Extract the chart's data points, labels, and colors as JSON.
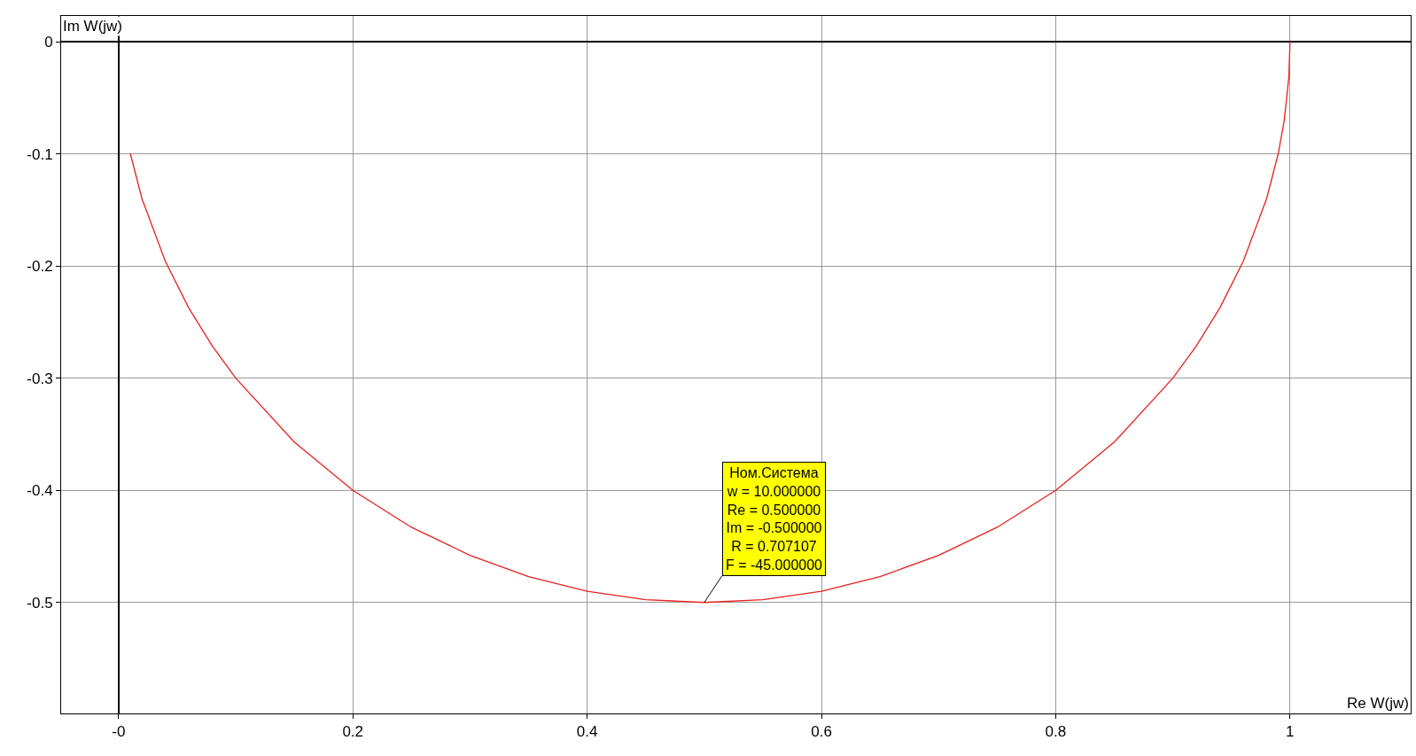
{
  "chart_data": {
    "type": "line",
    "xlabel": "Re W(jw)",
    "ylabel": "Im W(jw)",
    "xlim": [
      -0.049,
      1.103
    ],
    "ylim": [
      -0.599,
      0.023
    ],
    "xticks": [
      {
        "value": 0,
        "label": "-0"
      },
      0.2,
      0.4,
      0.6,
      0.8,
      1
    ],
    "yticks": [
      0,
      -0.1,
      -0.2,
      -0.3,
      -0.4,
      -0.5
    ],
    "grid": true,
    "marker": "none",
    "line_style": "solid",
    "series": [
      {
        "color": "#e8201c",
        "x": [
          0.01,
          0.02,
          0.04,
          0.06,
          0.08,
          0.1,
          0.15,
          0.2,
          0.25,
          0.3,
          0.35,
          0.4,
          0.45,
          0.5,
          0.55,
          0.6,
          0.65,
          0.7,
          0.75,
          0.8,
          0.85,
          0.9,
          0.92,
          0.94,
          0.96,
          0.98,
          0.99,
          0.995,
          0.999,
          1
        ],
        "values": [
          -0.0995,
          -0.14,
          -0.196,
          -0.2375,
          -0.2713,
          -0.3,
          -0.357,
          -0.4,
          -0.433,
          -0.458,
          -0.477,
          -0.49,
          -0.4975,
          -0.5,
          -0.4975,
          -0.49,
          -0.477,
          -0.458,
          -0.433,
          -0.4,
          -0.357,
          -0.3,
          -0.2713,
          -0.2375,
          -0.196,
          -0.14,
          -0.0995,
          -0.0705,
          -0.0316,
          0
        ]
      }
    ],
    "annotations": [
      {
        "text": "Ном.Система\nw = 10.000000\nRe = 0.500000\nIm = -0.500000\nR = 0.707107\nF = -45.000000",
        "x": 0.5,
        "y": -0.5
      }
    ]
  }
}
